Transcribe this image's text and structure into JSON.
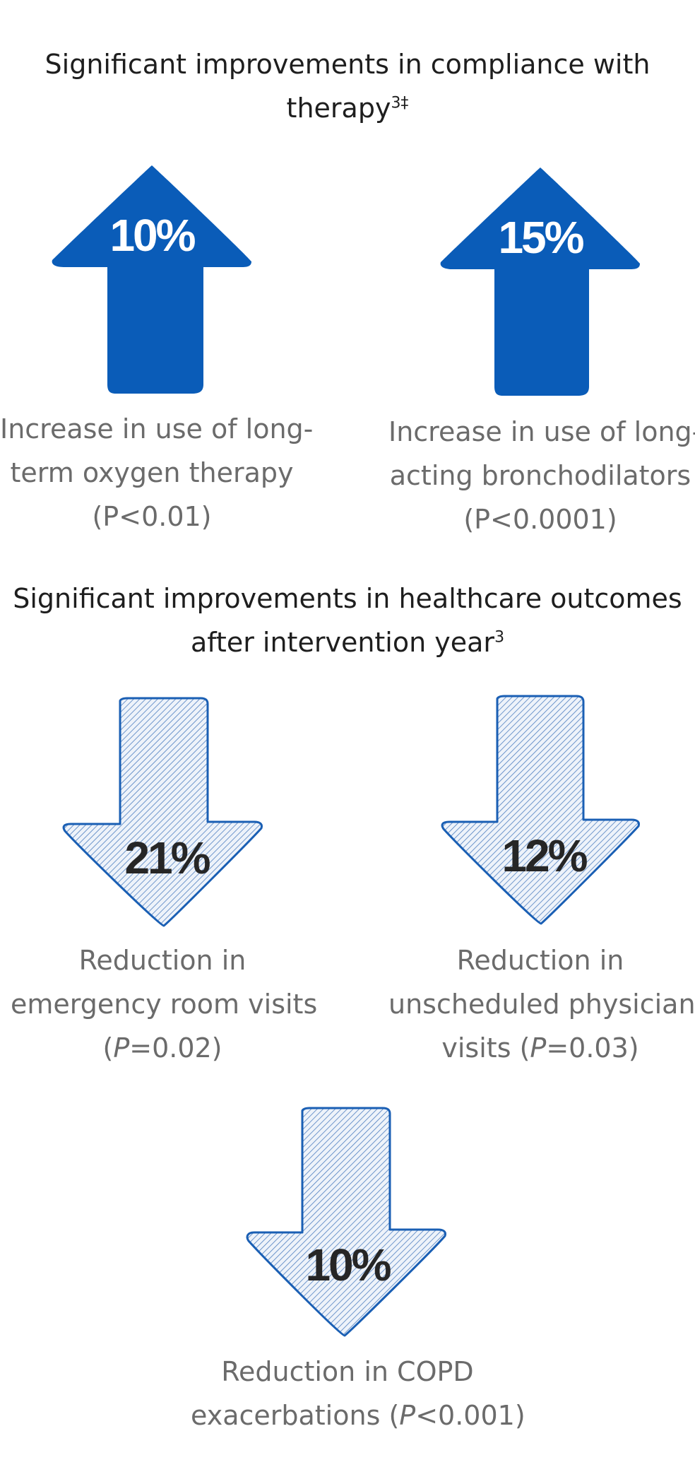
{
  "compliance": {
    "heading_line1": "Significant improvements in compliance with",
    "heading_line2": "therapy",
    "heading_sup": "3‡",
    "items": [
      {
        "value": "10%",
        "caption_line1": "Increase in use of long-",
        "caption_line2": "term oxygen therapy",
        "caption_line3": "(P<0.01)"
      },
      {
        "value": "15%",
        "caption_line1": "Increase in use of long-",
        "caption_line2": "acting bronchodilators",
        "caption_line3": "(P<0.0001)"
      }
    ]
  },
  "outcomes": {
    "heading_line1": "Significant improvements in healthcare outcomes",
    "heading_line2": "after intervention year",
    "heading_sup": "3",
    "items": [
      {
        "value": "21%",
        "caption_line1": "Reduction in",
        "caption_line2": "emergency room visits",
        "caption_line3_pre": "(",
        "caption_line3_p": "P",
        "caption_line3_post": "=0.02)"
      },
      {
        "value": "12%",
        "caption_line1": "Reduction in",
        "caption_line2": "unscheduled physician",
        "caption_line3_pre": "visits (",
        "caption_line3_p": "P",
        "caption_line3_post": "=0.03)"
      },
      {
        "value": "10%",
        "caption_line1": "Reduction in COPD",
        "caption_line2_pre": "exacerbations (",
        "caption_line2_p": "P",
        "caption_line2_post": "<0.001)"
      }
    ]
  },
  "colors": {
    "up_arrow_fill": "#0a5cb8",
    "up_arrow_text": "#ffffff",
    "down_arrow_stroke": "#1a5fb4",
    "down_arrow_hatch": "#4f7fc0",
    "down_arrow_text": "#262626",
    "heading_text": "#1e1e1e",
    "caption_text": "#6b6b6b"
  }
}
